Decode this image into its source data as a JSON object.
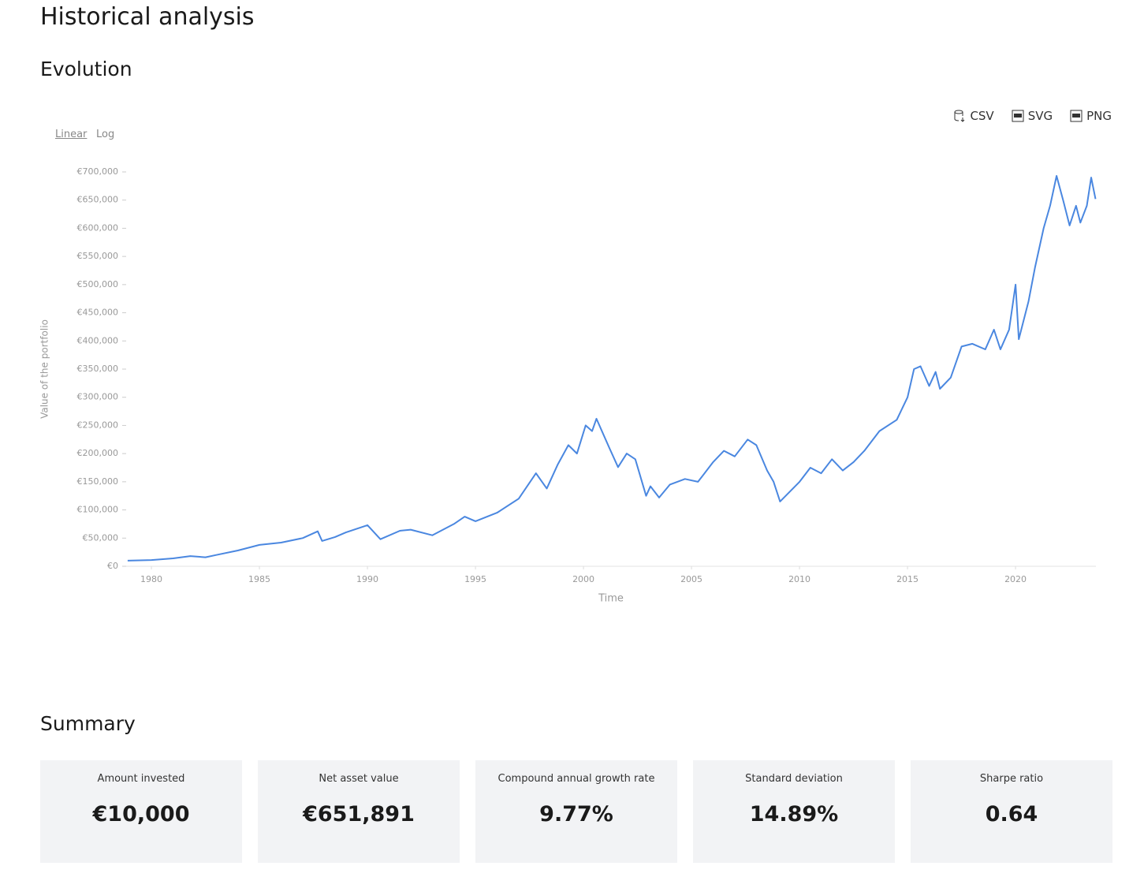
{
  "page": {
    "title": "Historical analysis",
    "section": "Evolution"
  },
  "chart_controls": {
    "scales": [
      "Linear",
      "Log"
    ],
    "active_scale": 0,
    "exports": [
      "CSV",
      "SVG",
      "PNG"
    ]
  },
  "chart_data": {
    "type": "line",
    "x_label": "Time",
    "y_label": "Value of the portfolio",
    "x": [
      1978.9,
      1980,
      1981,
      1981.8,
      1982.5,
      1983,
      1984,
      1985,
      1986,
      1987,
      1987.7,
      1987.9,
      1988.5,
      1989,
      1990,
      1990.6,
      1991.5,
      1992,
      1993,
      1994,
      1994.5,
      1995,
      1996,
      1997,
      1997.8,
      1998.3,
      1998.8,
      1999.3,
      1999.7,
      2000.1,
      2000.4,
      2000.6,
      2001.2,
      2001.6,
      2002,
      2002.4,
      2002.9,
      2003.1,
      2003.5,
      2004,
      2004.7,
      2005.3,
      2006,
      2006.5,
      2007,
      2007.6,
      2008,
      2008.5,
      2008.8,
      2009.1,
      2010,
      2010.5,
      2011,
      2011.5,
      2012,
      2012.5,
      2013,
      2013.7,
      2014.5,
      2015,
      2015.3,
      2015.6,
      2016,
      2016.3,
      2016.5,
      2017,
      2017.5,
      2018,
      2018.6,
      2019,
      2019.3,
      2019.7,
      2020,
      2020.15,
      2020.6,
      2020.9,
      2021.3,
      2021.6,
      2021.9,
      2022.2,
      2022.5,
      2022.8,
      2023,
      2023.3,
      2023.5,
      2023.7
    ],
    "series": [
      {
        "name": "Portfolio",
        "color": "#4a87e0",
        "values": [
          10000,
          11000,
          14000,
          18000,
          16000,
          20000,
          28000,
          38000,
          42000,
          50000,
          62000,
          45000,
          52000,
          60000,
          73000,
          48000,
          63000,
          65000,
          55000,
          75000,
          88000,
          80000,
          95000,
          120000,
          165000,
          138000,
          180000,
          215000,
          200000,
          250000,
          240000,
          262000,
          210000,
          176000,
          200000,
          190000,
          125000,
          142000,
          122000,
          145000,
          155000,
          150000,
          185000,
          205000,
          195000,
          225000,
          215000,
          170000,
          150000,
          115000,
          150000,
          175000,
          165000,
          190000,
          170000,
          185000,
          205000,
          240000,
          260000,
          300000,
          350000,
          355000,
          320000,
          345000,
          315000,
          335000,
          390000,
          395000,
          385000,
          420000,
          385000,
          420000,
          500000,
          403000,
          470000,
          530000,
          600000,
          640000,
          693000,
          650000,
          605000,
          640000,
          610000,
          640000,
          690000,
          652000
        ]
      }
    ],
    "xlim": [
      1978.83,
      2023.72
    ],
    "xticks": [
      1980,
      1985,
      1990,
      1995,
      2000,
      2005,
      2010,
      2015,
      2020
    ],
    "ylim": [
      0,
      700000
    ],
    "yticks": [
      {
        "value": 0,
        "label": "€0"
      },
      {
        "value": 50000,
        "label": "€50,000"
      },
      {
        "value": 100000,
        "label": "€100,000"
      },
      {
        "value": 150000,
        "label": "€150,000"
      },
      {
        "value": 200000,
        "label": "€200,000"
      },
      {
        "value": 250000,
        "label": "€250,000"
      },
      {
        "value": 300000,
        "label": "€300,000"
      },
      {
        "value": 350000,
        "label": "€350,000"
      },
      {
        "value": 400000,
        "label": "€400,000"
      },
      {
        "value": 450000,
        "label": "€450,000"
      },
      {
        "value": 500000,
        "label": "€500,000"
      },
      {
        "value": 550000,
        "label": "€550,000"
      },
      {
        "value": 600000,
        "label": "€600,000"
      },
      {
        "value": 650000,
        "label": "€650,000"
      },
      {
        "value": 700000,
        "label": "€700,000"
      }
    ],
    "log": false,
    "grid": false
  },
  "summary": {
    "title": "Summary",
    "cards": [
      {
        "label": "Amount invested",
        "value": "€10,000"
      },
      {
        "label": "Net asset value",
        "value": "€651,891"
      },
      {
        "label": "Compound annual growth rate",
        "value": "9.77%"
      },
      {
        "label": "Standard deviation",
        "value": "14.89%"
      },
      {
        "label": "Sharpe ratio",
        "value": "0.64"
      }
    ]
  }
}
